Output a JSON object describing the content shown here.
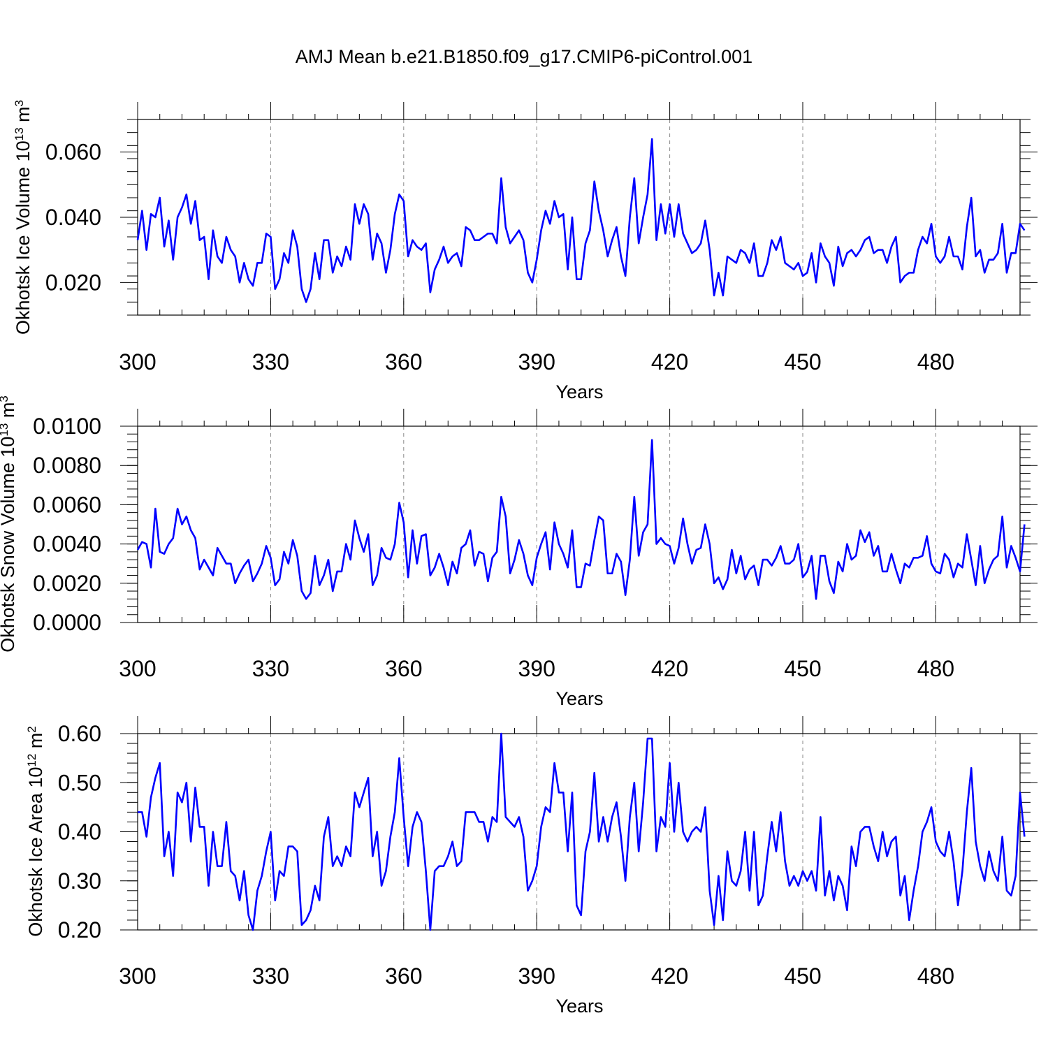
{
  "title": "AMJ Mean b.e21.B1850.f09_g17.CMIP6-piControl.001",
  "line_color": "#0000ff",
  "chart_data": [
    {
      "type": "line",
      "ylabel": "Okhotsk Ice Volume 10",
      "ylabel_exp": "13",
      "ylabel_unit": " m",
      "ylabel_unit_exp": "3",
      "xlabel": "Years",
      "xlim": [
        300,
        499
      ],
      "ylim": [
        0.01,
        0.07
      ],
      "xticks": [
        300,
        330,
        360,
        390,
        420,
        450,
        480
      ],
      "xtick_labels": [
        "300",
        "330",
        "360",
        "390",
        "420",
        "450",
        "480"
      ],
      "yticks": [
        0.02,
        0.04,
        0.06
      ],
      "ytick_labels": [
        "0.020",
        "0.040",
        "0.060"
      ],
      "grid": "vertical-dashed",
      "series": [
        {
          "x_start": 300,
          "values": [
            0.033,
            0.042,
            0.03,
            0.041,
            0.04,
            0.046,
            0.031,
            0.039,
            0.027,
            0.04,
            0.043,
            0.047,
            0.038,
            0.045,
            0.033,
            0.034,
            0.021,
            0.036,
            0.028,
            0.026,
            0.034,
            0.03,
            0.028,
            0.02,
            0.026,
            0.021,
            0.019,
            0.026,
            0.026,
            0.035,
            0.034,
            0.018,
            0.021,
            0.029,
            0.026,
            0.036,
            0.031,
            0.018,
            0.014,
            0.018,
            0.029,
            0.021,
            0.033,
            0.033,
            0.023,
            0.028,
            0.025,
            0.031,
            0.027,
            0.044,
            0.038,
            0.044,
            0.041,
            0.027,
            0.035,
            0.032,
            0.023,
            0.03,
            0.041,
            0.047,
            0.045,
            0.028,
            0.033,
            0.031,
            0.03,
            0.032,
            0.017,
            0.024,
            0.027,
            0.031,
            0.026,
            0.028,
            0.029,
            0.025,
            0.037,
            0.036,
            0.033,
            0.033,
            0.034,
            0.035,
            0.035,
            0.032,
            0.052,
            0.037,
            0.032,
            0.034,
            0.036,
            0.033,
            0.023,
            0.02,
            0.027,
            0.036,
            0.042,
            0.038,
            0.045,
            0.04,
            0.041,
            0.024,
            0.04,
            0.021,
            0.021,
            0.032,
            0.036,
            0.051,
            0.042,
            0.036,
            0.028,
            0.033,
            0.037,
            0.028,
            0.022,
            0.04,
            0.052,
            0.032,
            0.04,
            0.047,
            0.064,
            0.033,
            0.044,
            0.035,
            0.044,
            0.034,
            0.044,
            0.035,
            0.032,
            0.029,
            0.03,
            0.032,
            0.039,
            0.03,
            0.016,
            0.023,
            0.016,
            0.028,
            0.027,
            0.026,
            0.03,
            0.029,
            0.026,
            0.032,
            0.022,
            0.022,
            0.026,
            0.033,
            0.03,
            0.034,
            0.026,
            0.025,
            0.024,
            0.026,
            0.022,
            0.023,
            0.029,
            0.02,
            0.032,
            0.028,
            0.026,
            0.019,
            0.031,
            0.025,
            0.029,
            0.03,
            0.028,
            0.03,
            0.033,
            0.034,
            0.029,
            0.03,
            0.03,
            0.026,
            0.031,
            0.034,
            0.02,
            0.022,
            0.023,
            0.023,
            0.03,
            0.034,
            0.032,
            0.038,
            0.028,
            0.026,
            0.028,
            0.034,
            0.028,
            0.028,
            0.024,
            0.037,
            0.046,
            0.028,
            0.03,
            0.023,
            0.027,
            0.027,
            0.029,
            0.038,
            0.023,
            0.029,
            0.029,
            0.038,
            0.036
          ]
        }
      ]
    },
    {
      "type": "line",
      "ylabel": "Okhotsk Snow Volume 10",
      "ylabel_exp": "13",
      "ylabel_unit": " m",
      "ylabel_unit_exp": "3",
      "xlabel": "Years",
      "xlim": [
        300,
        499
      ],
      "ylim": [
        0.0,
        0.01
      ],
      "xticks": [
        300,
        330,
        360,
        390,
        420,
        450,
        480
      ],
      "xtick_labels": [
        "300",
        "330",
        "360",
        "390",
        "420",
        "450",
        "480"
      ],
      "yticks": [
        0.0,
        0.002,
        0.004,
        0.006,
        0.008,
        0.01
      ],
      "ytick_labels": [
        "0.0000",
        "0.0020",
        "0.0040",
        "0.0060",
        "0.0080",
        "0.0100"
      ],
      "grid": "vertical-dashed",
      "series": [
        {
          "x_start": 300,
          "values": [
            0.0037,
            0.0041,
            0.004,
            0.0028,
            0.0058,
            0.0036,
            0.0035,
            0.004,
            0.0043,
            0.0058,
            0.005,
            0.0054,
            0.0047,
            0.0043,
            0.0027,
            0.0032,
            0.0028,
            0.0024,
            0.0038,
            0.0034,
            0.003,
            0.003,
            0.002,
            0.0025,
            0.0029,
            0.0032,
            0.0021,
            0.0025,
            0.003,
            0.0039,
            0.0033,
            0.0019,
            0.0022,
            0.0036,
            0.003,
            0.0042,
            0.0034,
            0.0016,
            0.0012,
            0.0015,
            0.0034,
            0.0019,
            0.0024,
            0.0032,
            0.0016,
            0.0026,
            0.0026,
            0.004,
            0.0032,
            0.0052,
            0.0043,
            0.0036,
            0.0045,
            0.0019,
            0.0024,
            0.0038,
            0.0033,
            0.0032,
            0.004,
            0.0061,
            0.0051,
            0.0023,
            0.0047,
            0.003,
            0.0044,
            0.0045,
            0.0024,
            0.0028,
            0.0035,
            0.0028,
            0.0019,
            0.0031,
            0.0025,
            0.0038,
            0.004,
            0.0047,
            0.0029,
            0.0036,
            0.0035,
            0.0021,
            0.0033,
            0.0036,
            0.0064,
            0.0054,
            0.0025,
            0.0032,
            0.0042,
            0.0035,
            0.0024,
            0.0019,
            0.0033,
            0.004,
            0.0046,
            0.0027,
            0.0051,
            0.004,
            0.0035,
            0.0028,
            0.0047,
            0.0018,
            0.0018,
            0.003,
            0.0029,
            0.0042,
            0.0054,
            0.0052,
            0.0025,
            0.0025,
            0.0035,
            0.0031,
            0.0014,
            0.0032,
            0.0064,
            0.0034,
            0.0046,
            0.005,
            0.0093,
            0.004,
            0.0043,
            0.004,
            0.0039,
            0.003,
            0.0038,
            0.0053,
            0.004,
            0.003,
            0.0037,
            0.0038,
            0.005,
            0.004,
            0.002,
            0.0023,
            0.0017,
            0.0022,
            0.0037,
            0.0025,
            0.0034,
            0.0022,
            0.0027,
            0.0029,
            0.0019,
            0.0032,
            0.0032,
            0.0029,
            0.0033,
            0.0039,
            0.003,
            0.003,
            0.0032,
            0.004,
            0.0023,
            0.0026,
            0.0034,
            0.0012,
            0.0034,
            0.0034,
            0.0021,
            0.0015,
            0.0031,
            0.0026,
            0.004,
            0.0032,
            0.0034,
            0.0047,
            0.0041,
            0.0046,
            0.0034,
            0.0039,
            0.0026,
            0.0026,
            0.0035,
            0.0027,
            0.002,
            0.003,
            0.0028,
            0.0033,
            0.0033,
            0.0034,
            0.0044,
            0.003,
            0.0026,
            0.0025,
            0.0035,
            0.0032,
            0.0023,
            0.003,
            0.0028,
            0.0045,
            0.0032,
            0.0019,
            0.0039,
            0.002,
            0.0027,
            0.0032,
            0.0034,
            0.0054,
            0.0028,
            0.0039,
            0.0033,
            0.0026,
            0.005
          ]
        }
      ]
    },
    {
      "type": "line",
      "ylabel": "Okhotsk Ice Area 10",
      "ylabel_exp": "12",
      "ylabel_unit": " m",
      "ylabel_unit_exp": "2",
      "xlabel": "Years",
      "xlim": [
        300,
        499
      ],
      "ylim": [
        0.2,
        0.6
      ],
      "xticks": [
        300,
        330,
        360,
        390,
        420,
        450,
        480
      ],
      "xtick_labels": [
        "300",
        "330",
        "360",
        "390",
        "420",
        "450",
        "480"
      ],
      "yticks": [
        0.2,
        0.3,
        0.4,
        0.5,
        0.6
      ],
      "ytick_labels": [
        "0.20",
        "0.30",
        "0.40",
        "0.50",
        "0.60"
      ],
      "grid": "vertical-dashed",
      "series": [
        {
          "x_start": 300,
          "values": [
            0.44,
            0.44,
            0.39,
            0.47,
            0.51,
            0.54,
            0.35,
            0.4,
            0.31,
            0.48,
            0.46,
            0.5,
            0.38,
            0.49,
            0.41,
            0.41,
            0.29,
            0.4,
            0.33,
            0.33,
            0.42,
            0.32,
            0.31,
            0.26,
            0.32,
            0.23,
            0.2,
            0.28,
            0.31,
            0.36,
            0.4,
            0.26,
            0.32,
            0.31,
            0.37,
            0.37,
            0.36,
            0.21,
            0.22,
            0.24,
            0.29,
            0.26,
            0.39,
            0.43,
            0.33,
            0.35,
            0.33,
            0.37,
            0.35,
            0.48,
            0.45,
            0.48,
            0.51,
            0.35,
            0.4,
            0.29,
            0.32,
            0.39,
            0.44,
            0.55,
            0.43,
            0.33,
            0.41,
            0.44,
            0.42,
            0.32,
            0.2,
            0.32,
            0.33,
            0.33,
            0.35,
            0.38,
            0.33,
            0.34,
            0.44,
            0.44,
            0.44,
            0.42,
            0.42,
            0.38,
            0.43,
            0.42,
            0.6,
            0.43,
            0.42,
            0.41,
            0.43,
            0.39,
            0.28,
            0.3,
            0.33,
            0.41,
            0.45,
            0.44,
            0.54,
            0.48,
            0.48,
            0.36,
            0.48,
            0.25,
            0.23,
            0.36,
            0.4,
            0.52,
            0.38,
            0.43,
            0.38,
            0.43,
            0.46,
            0.39,
            0.3,
            0.43,
            0.5,
            0.36,
            0.46,
            0.59,
            0.59,
            0.36,
            0.43,
            0.41,
            0.54,
            0.4,
            0.5,
            0.4,
            0.38,
            0.4,
            0.41,
            0.4,
            0.45,
            0.28,
            0.21,
            0.31,
            0.22,
            0.36,
            0.3,
            0.29,
            0.32,
            0.4,
            0.28,
            0.4,
            0.25,
            0.27,
            0.35,
            0.42,
            0.36,
            0.44,
            0.34,
            0.29,
            0.31,
            0.29,
            0.32,
            0.3,
            0.32,
            0.28,
            0.43,
            0.27,
            0.32,
            0.26,
            0.31,
            0.29,
            0.24,
            0.37,
            0.33,
            0.4,
            0.41,
            0.41,
            0.37,
            0.34,
            0.4,
            0.35,
            0.38,
            0.39,
            0.27,
            0.31,
            0.22,
            0.28,
            0.33,
            0.4,
            0.42,
            0.45,
            0.38,
            0.36,
            0.35,
            0.4,
            0.34,
            0.25,
            0.32,
            0.44,
            0.53,
            0.38,
            0.33,
            0.3,
            0.36,
            0.32,
            0.3,
            0.39,
            0.28,
            0.27,
            0.31,
            0.48,
            0.39
          ]
        }
      ]
    }
  ]
}
